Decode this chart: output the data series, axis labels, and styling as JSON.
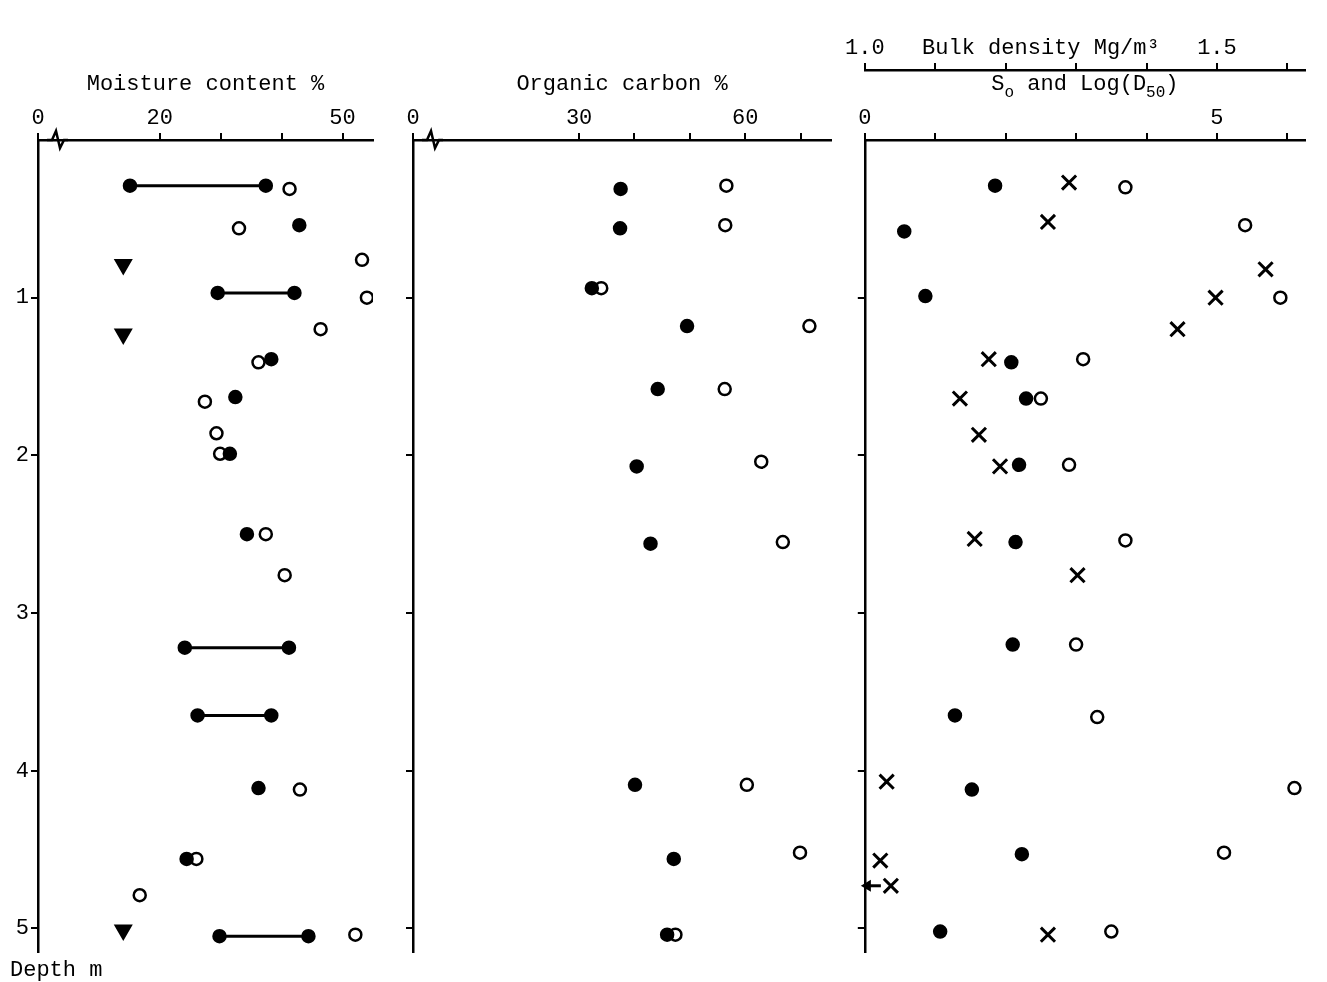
{
  "chart_data": [
    {
      "type": "scatter",
      "xlabel": "Moisture content %",
      "ylabel": "Depth m",
      "xlim": [
        0,
        55
      ],
      "xticks": [
        0,
        20,
        {
          "value": 30,
          "label": null
        },
        {
          "value": 40,
          "label": null
        },
        50
      ],
      "ylim": [
        5.15,
        0
      ],
      "yticks": [
        1,
        2,
        3,
        4,
        5
      ],
      "grid": false,
      "legend": false,
      "series": [
        {
          "type": "line",
          "marker": "none",
          "color": "#000000",
          "x": [
            15.1,
            37.4,
            null,
            29.5,
            42.1,
            null,
            24.1,
            41.2,
            null,
            26.2,
            38.3,
            null,
            29.8,
            44.4
          ],
          "values": [
            0.29,
            0.29,
            null,
            0.97,
            0.97,
            null,
            3.22,
            3.22,
            null,
            3.65,
            3.65,
            null,
            5.05,
            5.05
          ]
        },
        {
          "marker": "circle",
          "color": "#000000",
          "x": [
            15.1,
            37.4,
            42.9,
            29.5,
            42.1,
            38.3,
            32.4,
            31.5,
            34.3,
            24.1,
            41.2,
            26.2,
            38.3,
            36.2,
            24.4,
            29.8,
            44.4
          ],
          "values": [
            0.29,
            0.29,
            0.54,
            0.97,
            0.97,
            1.39,
            1.63,
            1.99,
            2.5,
            3.22,
            3.22,
            3.65,
            3.65,
            4.11,
            4.56,
            5.05,
            5.05
          ]
        },
        {
          "marker": "circle",
          "color": "#ffffff",
          "x": [
            41.3,
            33.0,
            53.2,
            54.0,
            46.4,
            36.2,
            27.4,
            29.3,
            29.9,
            37.4,
            40.5,
            43.0,
            26.0,
            16.7,
            52.1
          ],
          "values": [
            0.31,
            0.56,
            0.76,
            1.0,
            1.2,
            1.41,
            1.66,
            1.86,
            1.99,
            2.5,
            2.76,
            4.12,
            4.56,
            4.79,
            5.04
          ]
        },
        {
          "marker": "triangle",
          "color": "#000000",
          "x": [
            14,
            14,
            14
          ],
          "values": [
            0.79,
            1.23,
            5.01
          ]
        }
      ]
    },
    {
      "type": "scatter",
      "xlabel": "Organic carbon %",
      "xlim": [
        0,
        75.5
      ],
      "xticks": [
        0,
        30,
        {
          "value": 40,
          "label": null
        },
        {
          "value": 50,
          "label": null
        },
        60,
        {
          "value": 70,
          "label": null
        }
      ],
      "ylim": [
        5.15,
        0
      ],
      "yticks": [
        1,
        2,
        3,
        4,
        5
      ],
      "tick_labels": "x",
      "grid": false,
      "legend": false,
      "series": [
        {
          "marker": "circle",
          "color": "#000000",
          "x": [
            37.5,
            37.4,
            32.3,
            49.5,
            44.2,
            40.4,
            42.9,
            40.1,
            47.1,
            45.9
          ],
          "values": [
            0.31,
            0.56,
            0.94,
            1.18,
            1.58,
            2.07,
            2.56,
            4.09,
            4.56,
            5.04
          ]
        },
        {
          "marker": "circle",
          "color": "#ffffff",
          "x": [
            56.6,
            56.4,
            34.0,
            71.6,
            56.3,
            62.9,
            66.8,
            60.3,
            69.9,
            47.4
          ],
          "values": [
            0.29,
            0.54,
            0.94,
            1.18,
            1.58,
            2.04,
            2.55,
            4.09,
            4.52,
            5.04
          ]
        }
      ]
    },
    {
      "type": "scatter",
      "xlabel": "S$_{o}$ and Log(D$_{50}$)",
      "x2label": "Bulk density Mg/m³",
      "xlim": [
        0,
        6.25
      ],
      "xticks": [
        0,
        {
          "value": 1,
          "label": null
        },
        {
          "value": 2,
          "label": null
        },
        {
          "value": 3,
          "label": null
        },
        {
          "value": 4,
          "label": null
        },
        5,
        {
          "value": 6,
          "label": null
        }
      ],
      "x2lim": [
        1.0,
        1.625
      ],
      "x2ticks": [
        {
          "value": 1.0,
          "label": "1.0"
        },
        {
          "value": 1.1,
          "label": null
        },
        {
          "value": 1.2,
          "label": null
        },
        {
          "value": 1.3,
          "label": null
        },
        {
          "value": 1.4,
          "label": null
        },
        {
          "value": 1.5,
          "label": "1.5"
        },
        {
          "value": 1.6,
          "label": null
        }
      ],
      "ylim": [
        5.15,
        0
      ],
      "yticks": [
        1,
        2,
        3,
        4,
        5
      ],
      "tick_labels": "x",
      "grid": false,
      "legend": false,
      "series": [
        {
          "marker": "circle",
          "color": "#000000",
          "x": [
            1.85,
            0.56,
            0.86,
            2.08,
            2.29,
            2.19,
            2.14,
            2.1,
            1.28,
            1.52,
            2.23,
            1.07
          ],
          "values": [
            0.29,
            0.58,
            0.99,
            1.41,
            1.64,
            2.06,
            2.55,
            3.2,
            3.65,
            4.12,
            4.53,
            5.02
          ]
        },
        {
          "marker": "cross",
          "color": "#000000",
          "x": [
            2.9,
            2.6,
            5.69,
            4.98,
            4.44,
            1.76,
            1.35,
            1.62,
            1.92,
            1.56,
            3.02,
            0.31,
            0.22,
            0.37,
            2.6
          ],
          "values": [
            0.27,
            0.52,
            0.82,
            1.0,
            1.2,
            1.39,
            1.64,
            1.87,
            2.07,
            2.53,
            2.76,
            4.07,
            4.57,
            4.73,
            5.04
          ]
        },
        {
          "marker": "circle",
          "color": "#ffffff",
          "axis": "x2",
          "x": [
            1.37,
            1.54,
            1.59,
            1.31,
            1.25,
            1.29,
            1.37,
            1.3,
            1.33,
            1.61,
            1.51,
            1.35
          ],
          "values": [
            0.3,
            0.54,
            1.0,
            1.39,
            1.64,
            2.06,
            2.54,
            3.2,
            3.66,
            4.11,
            4.52,
            5.02
          ]
        }
      ]
    }
  ]
}
